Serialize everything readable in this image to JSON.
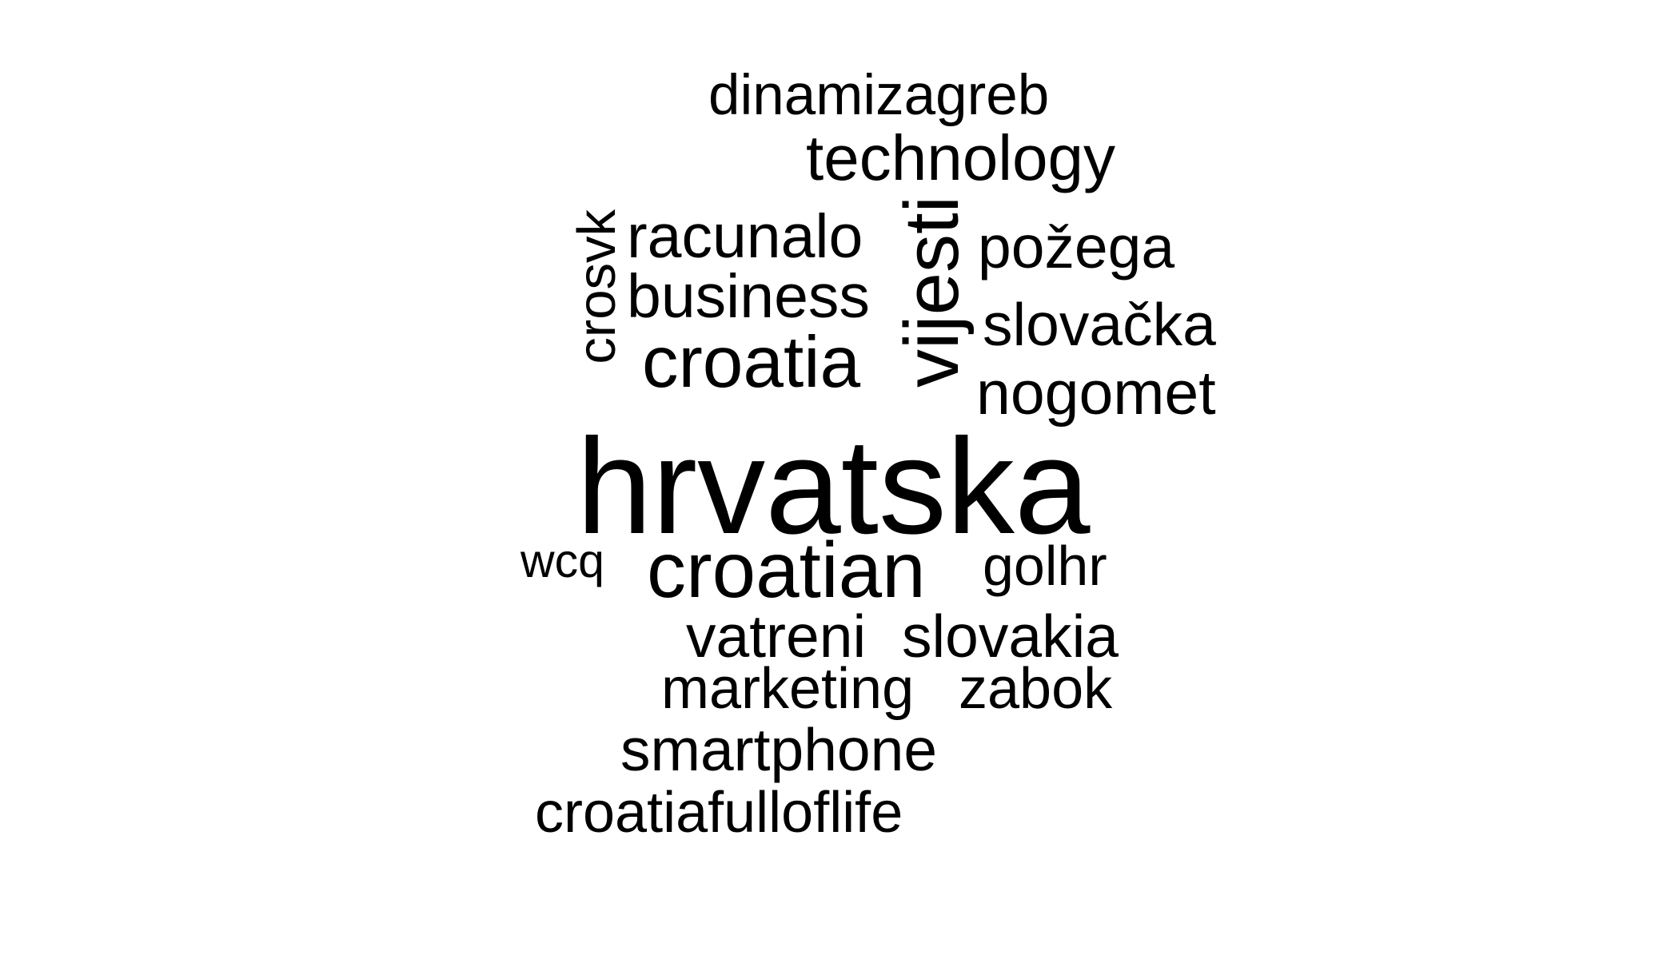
{
  "word_cloud": {
    "words": [
      {
        "text": "hrvatska",
        "orientation": "horizontal"
      },
      {
        "text": "croatian",
        "orientation": "horizontal"
      },
      {
        "text": "vijesti",
        "orientation": "vertical"
      },
      {
        "text": "croatia",
        "orientation": "horizontal"
      },
      {
        "text": "technology",
        "orientation": "horizontal"
      },
      {
        "text": "racunalo",
        "orientation": "horizontal"
      },
      {
        "text": "business",
        "orientation": "horizontal"
      },
      {
        "text": "nogomet",
        "orientation": "horizontal"
      },
      {
        "text": "slovačka",
        "orientation": "horizontal"
      },
      {
        "text": "požega",
        "orientation": "horizontal"
      },
      {
        "text": "slovakia",
        "orientation": "horizontal"
      },
      {
        "text": "vatreni",
        "orientation": "horizontal"
      },
      {
        "text": "smartphone",
        "orientation": "horizontal"
      },
      {
        "text": "marketing",
        "orientation": "horizontal"
      },
      {
        "text": "zabok",
        "orientation": "horizontal"
      },
      {
        "text": "croatiafulloflife",
        "orientation": "horizontal"
      },
      {
        "text": "dinamizagreb",
        "orientation": "horizontal"
      },
      {
        "text": "golhr",
        "orientation": "horizontal"
      },
      {
        "text": "crosvk",
        "orientation": "vertical"
      },
      {
        "text": "wcq",
        "orientation": "horizontal"
      }
    ],
    "text_color": "#000000",
    "background_color": "#ffffff"
  }
}
